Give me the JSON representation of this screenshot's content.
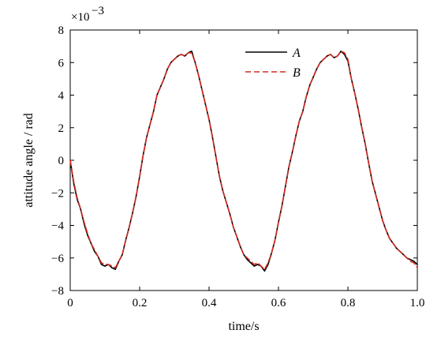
{
  "chart_data": {
    "type": "line",
    "title": "",
    "xlabel": "time/s",
    "ylabel": "attitude angle / rad",
    "y_scale_note": "×10",
    "y_scale_exponent": "−3",
    "xlim": [
      0,
      1.0
    ],
    "ylim": [
      -8,
      8
    ],
    "x_ticks": [
      0,
      0.2,
      0.4,
      0.6,
      0.8,
      1.0
    ],
    "x_tick_labels": [
      "0",
      "0.2",
      "0.4",
      "0.6",
      "0.8",
      "1.0"
    ],
    "y_ticks": [
      -8,
      -6,
      -4,
      -2,
      0,
      2,
      4,
      6,
      8
    ],
    "y_tick_labels": [
      "−8",
      "−6",
      "−4",
      "−2",
      "0",
      "2",
      "4",
      "6",
      "8"
    ],
    "legend_position": "top-right",
    "grid": false,
    "series": [
      {
        "name": "A",
        "color": "#000000",
        "style": "solid",
        "x": [
          0,
          0.01,
          0.02,
          0.03,
          0.04,
          0.05,
          0.06,
          0.07,
          0.08,
          0.09,
          0.1,
          0.11,
          0.12,
          0.13,
          0.14,
          0.15,
          0.16,
          0.17,
          0.18,
          0.19,
          0.2,
          0.21,
          0.22,
          0.23,
          0.24,
          0.25,
          0.26,
          0.27,
          0.28,
          0.29,
          0.3,
          0.31,
          0.32,
          0.33,
          0.34,
          0.35,
          0.36,
          0.37,
          0.38,
          0.39,
          0.4,
          0.41,
          0.42,
          0.43,
          0.44,
          0.45,
          0.46,
          0.47,
          0.48,
          0.49,
          0.5,
          0.51,
          0.52,
          0.53,
          0.54,
          0.55,
          0.56,
          0.57,
          0.58,
          0.59,
          0.6,
          0.61,
          0.62,
          0.63,
          0.64,
          0.65,
          0.66,
          0.67,
          0.68,
          0.69,
          0.7,
          0.71,
          0.72,
          0.73,
          0.74,
          0.75,
          0.76,
          0.77,
          0.78,
          0.79,
          0.8,
          0.81,
          0.82,
          0.83,
          0.84,
          0.85,
          0.86,
          0.87,
          0.88,
          0.89,
          0.9,
          0.91,
          0.92,
          0.93,
          0.94,
          0.95,
          0.96,
          0.97,
          0.98,
          0.99,
          1.0
        ],
        "y": [
          0,
          -1.4,
          -2.4,
          -3.0,
          -3.9,
          -4.6,
          -5.1,
          -5.6,
          -5.9,
          -6.4,
          -6.5,
          -6.4,
          -6.6,
          -6.7,
          -6.2,
          -5.8,
          -4.9,
          -4.1,
          -3.2,
          -2.2,
          -1.0,
          0.3,
          1.4,
          2.2,
          3.0,
          4.0,
          4.5,
          5.0,
          5.6,
          6.0,
          6.2,
          6.4,
          6.5,
          6.4,
          6.6,
          6.7,
          6.0,
          5.2,
          4.3,
          3.4,
          2.5,
          1.4,
          0.2,
          -1.0,
          -1.9,
          -2.6,
          -3.3,
          -4.1,
          -4.7,
          -5.3,
          -5.8,
          -6.1,
          -6.3,
          -6.5,
          -6.4,
          -6.5,
          -6.8,
          -6.4,
          -5.7,
          -4.9,
          -3.8,
          -2.8,
          -1.6,
          -0.4,
          0.5,
          1.5,
          2.4,
          3.0,
          3.9,
          4.6,
          5.1,
          5.6,
          6.0,
          6.2,
          6.4,
          6.5,
          6.3,
          6.4,
          6.7,
          6.5,
          6.1,
          5.0,
          4.1,
          3.1,
          2.0,
          1.0,
          -0.2,
          -1.3,
          -2.1,
          -2.9,
          -3.7,
          -4.3,
          -4.8,
          -5.1,
          -5.4,
          -5.6,
          -5.8,
          -6.0,
          -6.1,
          -6.2,
          -6.4
        ]
      },
      {
        "name": "B",
        "color": "#d42a1f",
        "style": "dashed",
        "x": [
          0,
          0.01,
          0.02,
          0.03,
          0.04,
          0.05,
          0.06,
          0.07,
          0.08,
          0.09,
          0.1,
          0.11,
          0.12,
          0.13,
          0.14,
          0.15,
          0.16,
          0.17,
          0.18,
          0.19,
          0.2,
          0.21,
          0.22,
          0.23,
          0.24,
          0.25,
          0.26,
          0.27,
          0.28,
          0.29,
          0.3,
          0.31,
          0.32,
          0.33,
          0.34,
          0.35,
          0.36,
          0.37,
          0.38,
          0.39,
          0.4,
          0.41,
          0.42,
          0.43,
          0.44,
          0.45,
          0.46,
          0.47,
          0.48,
          0.49,
          0.5,
          0.51,
          0.52,
          0.53,
          0.54,
          0.55,
          0.56,
          0.57,
          0.58,
          0.59,
          0.6,
          0.61,
          0.62,
          0.63,
          0.64,
          0.65,
          0.66,
          0.67,
          0.68,
          0.69,
          0.7,
          0.71,
          0.72,
          0.73,
          0.74,
          0.75,
          0.76,
          0.77,
          0.78,
          0.79,
          0.8,
          0.81,
          0.82,
          0.83,
          0.84,
          0.85,
          0.86,
          0.87,
          0.88,
          0.89,
          0.9,
          0.91,
          0.92,
          0.93,
          0.94,
          0.95,
          0.96,
          0.97,
          0.98,
          0.99,
          1.0
        ],
        "y": [
          0,
          -1.3,
          -2.3,
          -3.0,
          -3.8,
          -4.5,
          -5.1,
          -5.5,
          -5.9,
          -6.3,
          -6.4,
          -6.4,
          -6.5,
          -6.6,
          -6.2,
          -5.8,
          -4.9,
          -4.1,
          -3.2,
          -2.2,
          -1.0,
          0.3,
          1.4,
          2.2,
          3.0,
          4.0,
          4.5,
          5.0,
          5.6,
          6.0,
          6.2,
          6.4,
          6.5,
          6.4,
          6.6,
          6.6,
          6.0,
          5.2,
          4.3,
          3.4,
          2.5,
          1.4,
          0.2,
          -1.0,
          -1.9,
          -2.6,
          -3.3,
          -4.1,
          -4.7,
          -5.3,
          -5.8,
          -6.0,
          -6.2,
          -6.4,
          -6.3,
          -6.5,
          -6.7,
          -6.3,
          -5.7,
          -4.9,
          -3.8,
          -2.8,
          -1.6,
          -0.4,
          0.5,
          1.5,
          2.4,
          3.0,
          3.9,
          4.6,
          5.1,
          5.6,
          6.0,
          6.2,
          6.4,
          6.5,
          6.3,
          6.4,
          6.7,
          6.6,
          6.2,
          5.0,
          4.1,
          3.1,
          2.0,
          1.0,
          -0.2,
          -1.3,
          -2.1,
          -2.9,
          -3.7,
          -4.3,
          -4.8,
          -5.1,
          -5.4,
          -5.6,
          -5.8,
          -6.0,
          -6.2,
          -6.3,
          -6.6
        ]
      }
    ]
  }
}
